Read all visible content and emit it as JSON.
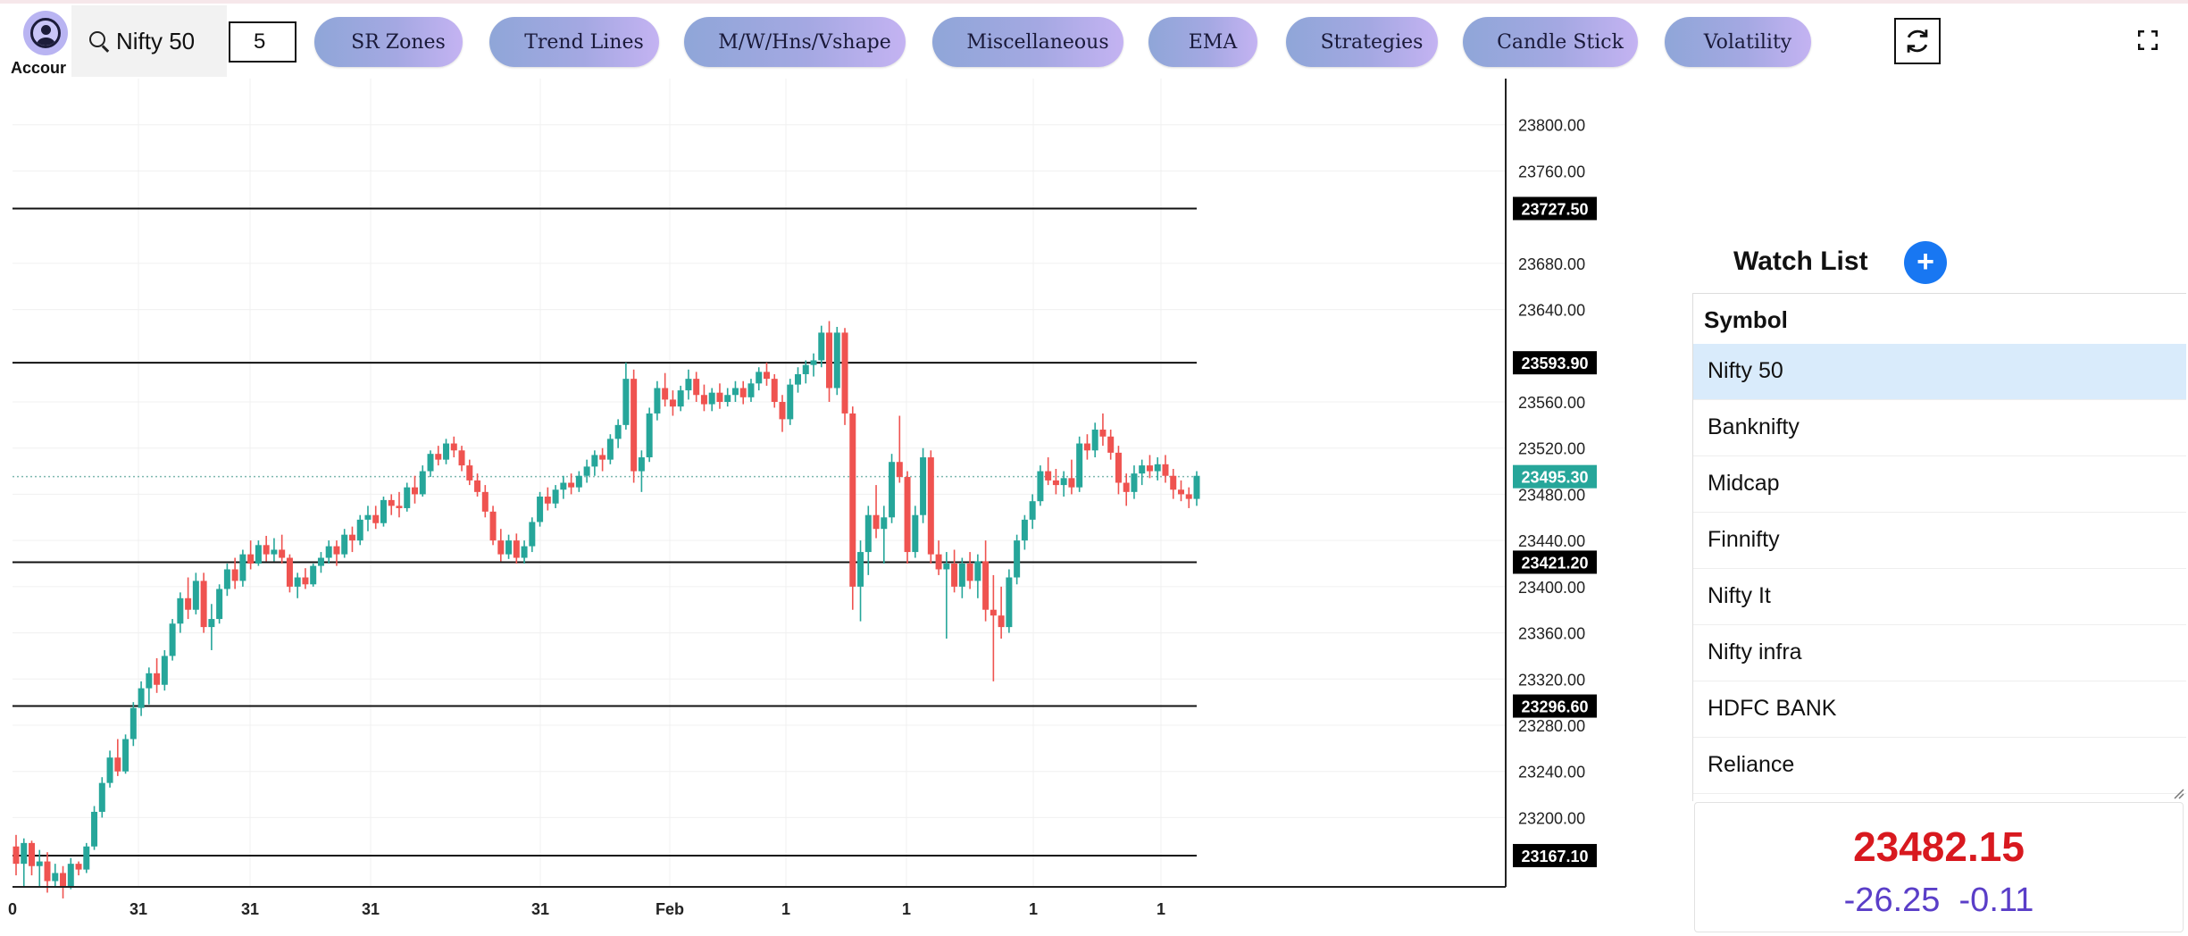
{
  "header": {
    "account_label": "Accour",
    "search_value": "Nifty 50",
    "interval_value": "5",
    "tools": [
      "SR Zones",
      "Trend Lines",
      "M/W/Hns/Vshape",
      "Miscellaneous",
      "EMA",
      "Strategies",
      "Candle Stick",
      "Volatility"
    ]
  },
  "icons": {
    "account": "account-circle-icon",
    "search": "search-icon",
    "refresh": "refresh-icon",
    "fullscreen": "fullscreen-icon",
    "add": "plus-icon"
  },
  "chart_data": {
    "type": "candlestick",
    "ylim": [
      23140,
      23840
    ],
    "y_ticks": [
      23200,
      23240,
      23280,
      23320,
      23360,
      23400,
      23440,
      23480,
      23520,
      23560,
      23640,
      23680,
      23760,
      23800
    ],
    "x_labels": [
      "0",
      "31",
      "31",
      "31",
      "31",
      "Feb",
      "1",
      "1",
      "1",
      "1"
    ],
    "levels": [
      {
        "value": 23727.5,
        "label": "23727.50"
      },
      {
        "value": 23593.9,
        "label": "23593.90"
      },
      {
        "value": 23421.2,
        "label": "23421.20"
      },
      {
        "value": 23296.6,
        "label": "23296.60"
      },
      {
        "value": 23167.1,
        "label": "23167.10"
      }
    ],
    "current_price": {
      "value": 23495.3,
      "label": "23495.30"
    },
    "candles": [
      [
        23175,
        23185,
        23150,
        23160
      ],
      [
        23160,
        23182,
        23140,
        23178
      ],
      [
        23178,
        23180,
        23150,
        23158
      ],
      [
        23158,
        23172,
        23140,
        23162
      ],
      [
        23162,
        23170,
        23135,
        23145
      ],
      [
        23145,
        23160,
        23140,
        23152
      ],
      [
        23152,
        23158,
        23130,
        23140
      ],
      [
        23140,
        23165,
        23138,
        23160
      ],
      [
        23160,
        23162,
        23150,
        23155
      ],
      [
        23155,
        23178,
        23152,
        23175
      ],
      [
        23175,
        23210,
        23172,
        23205
      ],
      [
        23205,
        23235,
        23200,
        23230
      ],
      [
        23230,
        23258,
        23226,
        23252
      ],
      [
        23252,
        23268,
        23236,
        23240
      ],
      [
        23240,
        23272,
        23238,
        23268
      ],
      [
        23268,
        23300,
        23262,
        23295
      ],
      [
        23295,
        23318,
        23288,
        23312
      ],
      [
        23312,
        23330,
        23298,
        23325
      ],
      [
        23325,
        23338,
        23308,
        23315
      ],
      [
        23315,
        23345,
        23310,
        23340
      ],
      [
        23340,
        23372,
        23336,
        23368
      ],
      [
        23368,
        23395,
        23360,
        23390
      ],
      [
        23390,
        23408,
        23372,
        23380
      ],
      [
        23380,
        23412,
        23376,
        23405
      ],
      [
        23405,
        23412,
        23360,
        23365
      ],
      [
        23365,
        23385,
        23345,
        23372
      ],
      [
        23372,
        23402,
        23368,
        23398
      ],
      [
        23398,
        23420,
        23392,
        23415
      ],
      [
        23415,
        23425,
        23398,
        23405
      ],
      [
        23405,
        23432,
        23400,
        23428
      ],
      [
        23428,
        23440,
        23415,
        23420
      ],
      [
        23420,
        23440,
        23418,
        23436
      ],
      [
        23436,
        23444,
        23422,
        23428
      ],
      [
        23428,
        23442,
        23422,
        23432
      ],
      [
        23432,
        23445,
        23420,
        23425
      ],
      [
        23425,
        23428,
        23395,
        23400
      ],
      [
        23400,
        23412,
        23390,
        23408
      ],
      [
        23408,
        23416,
        23398,
        23402
      ],
      [
        23402,
        23420,
        23400,
        23418
      ],
      [
        23418,
        23430,
        23412,
        23425
      ],
      [
        23425,
        23440,
        23420,
        23435
      ],
      [
        23435,
        23440,
        23418,
        23428
      ],
      [
        23428,
        23450,
        23425,
        23445
      ],
      [
        23445,
        23452,
        23430,
        23440
      ],
      [
        23440,
        23462,
        23436,
        23458
      ],
      [
        23458,
        23470,
        23448,
        23462
      ],
      [
        23462,
        23470,
        23450,
        23455
      ],
      [
        23455,
        23478,
        23452,
        23475
      ],
      [
        23475,
        23480,
        23462,
        23470
      ],
      [
        23470,
        23482,
        23460,
        23468
      ],
      [
        23468,
        23490,
        23465,
        23486
      ],
      [
        23486,
        23496,
        23472,
        23480
      ],
      [
        23480,
        23505,
        23478,
        23500
      ],
      [
        23500,
        23518,
        23495,
        23515
      ],
      [
        23515,
        23522,
        23505,
        23510
      ],
      [
        23510,
        23528,
        23506,
        23524
      ],
      [
        23524,
        23530,
        23512,
        23518
      ],
      [
        23518,
        23522,
        23500,
        23505
      ],
      [
        23505,
        23510,
        23488,
        23492
      ],
      [
        23492,
        23498,
        23478,
        23482
      ],
      [
        23482,
        23488,
        23460,
        23465
      ],
      [
        23465,
        23470,
        23436,
        23440
      ],
      [
        23440,
        23450,
        23422,
        23428
      ],
      [
        23428,
        23445,
        23424,
        23440
      ],
      [
        23440,
        23446,
        23420,
        23425
      ],
      [
        23425,
        23440,
        23420,
        23435
      ],
      [
        23435,
        23460,
        23430,
        23456
      ],
      [
        23456,
        23482,
        23452,
        23478
      ],
      [
        23478,
        23486,
        23466,
        23472
      ],
      [
        23472,
        23488,
        23468,
        23484
      ],
      [
        23484,
        23496,
        23476,
        23490
      ],
      [
        23490,
        23498,
        23480,
        23486
      ],
      [
        23486,
        23500,
        23482,
        23496
      ],
      [
        23496,
        23510,
        23490,
        23504
      ],
      [
        23504,
        23518,
        23496,
        23514
      ],
      [
        23514,
        23520,
        23500,
        23510
      ],
      [
        23510,
        23532,
        23506,
        23528
      ],
      [
        23528,
        23545,
        23520,
        23540
      ],
      [
        23540,
        23594,
        23536,
        23580
      ],
      [
        23580,
        23588,
        23490,
        23500
      ],
      [
        23500,
        23518,
        23482,
        23512
      ],
      [
        23512,
        23555,
        23508,
        23550
      ],
      [
        23550,
        23578,
        23544,
        23572
      ],
      [
        23572,
        23585,
        23556,
        23562
      ],
      [
        23562,
        23570,
        23548,
        23556
      ],
      [
        23556,
        23574,
        23552,
        23570
      ],
      [
        23570,
        23588,
        23562,
        23580
      ],
      [
        23580,
        23586,
        23560,
        23566
      ],
      [
        23566,
        23575,
        23552,
        23558
      ],
      [
        23558,
        23572,
        23552,
        23568
      ],
      [
        23568,
        23576,
        23554,
        23560
      ],
      [
        23560,
        23572,
        23556,
        23566
      ],
      [
        23566,
        23578,
        23560,
        23572
      ],
      [
        23572,
        23578,
        23558,
        23564
      ],
      [
        23564,
        23580,
        23560,
        23576
      ],
      [
        23576,
        23590,
        23570,
        23586
      ],
      [
        23586,
        23594,
        23574,
        23580
      ],
      [
        23580,
        23584,
        23555,
        23560
      ],
      [
        23560,
        23566,
        23534,
        23545
      ],
      [
        23545,
        23580,
        23540,
        23575
      ],
      [
        23575,
        23590,
        23568,
        23584
      ],
      [
        23584,
        23596,
        23576,
        23592
      ],
      [
        23592,
        23602,
        23582,
        23596
      ],
      [
        23596,
        23626,
        23590,
        23620
      ],
      [
        23620,
        23630,
        23560,
        23572
      ],
      [
        23572,
        23625,
        23566,
        23620
      ],
      [
        23620,
        23624,
        23540,
        23550
      ],
      [
        23550,
        23556,
        23380,
        23400
      ],
      [
        23400,
        23440,
        23370,
        23430
      ],
      [
        23430,
        23470,
        23410,
        23462
      ],
      [
        23462,
        23488,
        23442,
        23450
      ],
      [
        23450,
        23470,
        23420,
        23460
      ],
      [
        23460,
        23515,
        23455,
        23508
      ],
      [
        23508,
        23548,
        23490,
        23495
      ],
      [
        23495,
        23500,
        23420,
        23430
      ],
      [
        23430,
        23470,
        23425,
        23462
      ],
      [
        23462,
        23520,
        23455,
        23512
      ],
      [
        23512,
        23518,
        23420,
        23428
      ],
      [
        23428,
        23440,
        23410,
        23415
      ],
      [
        23415,
        23430,
        23355,
        23420
      ],
      [
        23420,
        23432,
        23395,
        23400
      ],
      [
        23400,
        23425,
        23390,
        23420
      ],
      [
        23420,
        23430,
        23398,
        23405
      ],
      [
        23405,
        23428,
        23390,
        23422
      ],
      [
        23422,
        23440,
        23370,
        23380
      ],
      [
        23380,
        23410,
        23318,
        23375
      ],
      [
        23375,
        23400,
        23355,
        23365
      ],
      [
        23365,
        23415,
        23360,
        23408
      ],
      [
        23408,
        23445,
        23402,
        23440
      ],
      [
        23440,
        23462,
        23432,
        23458
      ],
      [
        23458,
        23480,
        23450,
        23474
      ],
      [
        23474,
        23505,
        23470,
        23500
      ],
      [
        23500,
        23512,
        23488,
        23492
      ],
      [
        23492,
        23502,
        23480,
        23488
      ],
      [
        23488,
        23500,
        23478,
        23494
      ],
      [
        23494,
        23510,
        23480,
        23486
      ],
      [
        23486,
        23530,
        23482,
        23524
      ],
      [
        23524,
        23532,
        23510,
        23518
      ],
      [
        23518,
        23542,
        23512,
        23536
      ],
      [
        23536,
        23550,
        23522,
        23530
      ],
      [
        23530,
        23536,
        23510,
        23516
      ],
      [
        23516,
        23522,
        23480,
        23490
      ],
      [
        23490,
        23498,
        23470,
        23482
      ],
      [
        23482,
        23505,
        23476,
        23498
      ],
      [
        23498,
        23510,
        23488,
        23505
      ],
      [
        23505,
        23514,
        23494,
        23500
      ],
      [
        23500,
        23512,
        23492,
        23506
      ],
      [
        23506,
        23514,
        23490,
        23496
      ],
      [
        23496,
        23502,
        23476,
        23484
      ],
      [
        23484,
        23492,
        23474,
        23480
      ],
      [
        23480,
        23486,
        23468,
        23476
      ],
      [
        23476,
        23500,
        23470,
        23496
      ]
    ]
  },
  "watchlist": {
    "title": "Watch List",
    "column": "Symbol",
    "items": [
      "Nifty 50",
      "Banknifty",
      "Midcap",
      "Finnifty",
      "Nifty It",
      "Nifty infra",
      "HDFC BANK",
      "Reliance"
    ]
  },
  "quote": {
    "price": "23482.15",
    "change": "-26.25",
    "change_pct": "-0.11"
  }
}
